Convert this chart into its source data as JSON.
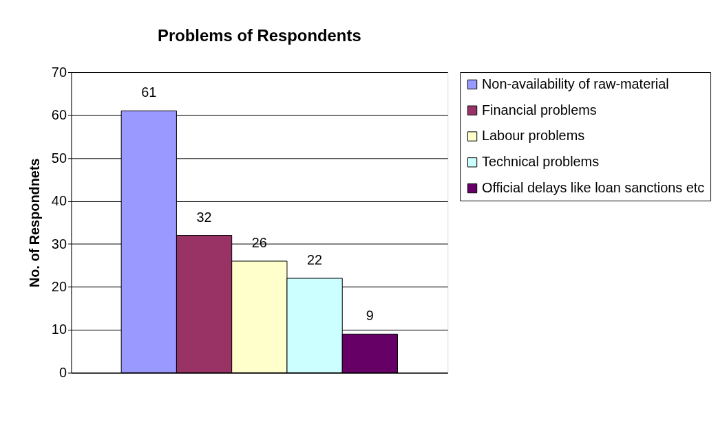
{
  "chart_data": {
    "type": "bar",
    "title": "Problems of Respondents",
    "ylabel": "No. of Respondnets",
    "categories": [
      null
    ],
    "series": [
      {
        "name": "Non-availability of raw-material",
        "color": "#9999ff",
        "values": [
          61
        ]
      },
      {
        "name": "Financial problems",
        "color": "#993366",
        "values": [
          32
        ]
      },
      {
        "name": "Labour problems",
        "color": "#ffffcc",
        "values": [
          26
        ]
      },
      {
        "name": "Technical problems",
        "color": "#ccffff",
        "values": [
          22
        ]
      },
      {
        "name": "Official delays like loan sanctions etc",
        "color": "#660066",
        "values": [
          9
        ]
      }
    ],
    "ylim": [
      0,
      70
    ],
    "yticks": [
      0,
      10,
      20,
      30,
      40,
      50,
      60,
      70
    ],
    "grid": "y",
    "legend": "right",
    "data_labels": true
  }
}
